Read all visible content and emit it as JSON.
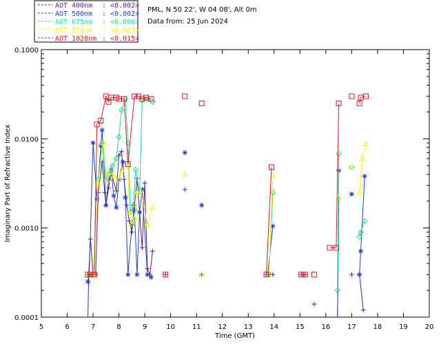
{
  "chart_data": {
    "type": "scatter",
    "title": "",
    "xlabel": "Time (GMT)",
    "ylabel": "Imaginary Part of Refractive Index",
    "xlim": [
      5,
      20
    ],
    "ylim": [
      0.0001,
      0.1
    ],
    "yscale": "log",
    "x_ticks": [
      5,
      6,
      7,
      8,
      9,
      10,
      11,
      12,
      13,
      14,
      15,
      16,
      17,
      18,
      19,
      20
    ],
    "x_tick_labels": [
      "5",
      "6",
      "7",
      "8",
      "9",
      "10",
      "11",
      "12",
      "13",
      "14",
      "15",
      "16",
      "17",
      "18",
      "19",
      "20"
    ],
    "y_ticks": [
      0.0001,
      0.001,
      0.01,
      0.1
    ],
    "y_tick_labels": [
      "0.0001",
      "0.0010",
      "0.0100",
      "0.1000"
    ],
    "info_line1": "PML, N 50 22', W 04 08', Alt 0m",
    "info_line2": "Data from: 25 Jun 2024",
    "legend_position": "top-left outside",
    "series": [
      {
        "name": "AOT 400nm",
        "stat": ": <0.002>",
        "color": "#5b1a8c",
        "marker": "plus",
        "segments": [
          [
            [
              6.8,
              0.0001
            ],
            [
              6.83,
              0.0003
            ],
            [
              6.9,
              0.00075
            ],
            [
              7.0,
              0.0003
            ],
            [
              7.1,
              0.0003
            ],
            [
              7.2,
              0.0025
            ],
            [
              7.35,
              0.0055
            ],
            [
              7.45,
              0.0025
            ],
            [
              7.5,
              0.0018
            ],
            [
              7.6,
              0.0028
            ],
            [
              7.7,
              0.0042
            ],
            [
              7.9,
              0.0026
            ],
            [
              8.0,
              0.0065
            ],
            [
              8.1,
              0.0072
            ],
            [
              8.2,
              0.0035
            ],
            [
              8.3,
              0.0018
            ],
            [
              8.4,
              0.0012
            ],
            [
              8.5,
              0.0009
            ],
            [
              8.6,
              0.0018
            ],
            [
              8.7,
              0.0036
            ],
            [
              8.8,
              0.0015
            ],
            [
              8.9,
              0.0006
            ],
            [
              9.0,
              0.0032
            ],
            [
              9.1,
              0.00035
            ],
            [
              9.2,
              0.0003
            ],
            [
              9.3,
              0.00055
            ]
          ],
          [
            [
              9.8,
              0.0003
            ]
          ],
          [
            [
              10.55,
              0.0027
            ]
          ],
          [
            [
              11.2,
              0.0003
            ]
          ],
          [
            [
              13.7,
              0.0003
            ],
            [
              13.85,
              0.0003
            ],
            [
              13.95,
              0.0003
            ]
          ],
          [
            [
              15.05,
              0.0003
            ],
            [
              15.2,
              0.0003
            ]
          ],
          [
            [
              15.55,
              0.00014
            ]
          ],
          [
            [
              16.45,
              0.0001
            ],
            [
              16.5,
              0.0021
            ]
          ],
          [
            [
              17.0,
              0.0003
            ]
          ],
          [
            [
              17.3,
              0.0003
            ],
            [
              17.45,
              0.00012
            ]
          ]
        ]
      },
      {
        "name": "AOT 500nm",
        "stat": ": <0.002>",
        "color": "#1f3cc7",
        "marker": "star",
        "segments": [
          [
            [
              6.8,
              0.00025
            ],
            [
              6.85,
              0.0003
            ],
            [
              7.0,
              0.009
            ],
            [
              7.15,
              0.0021
            ],
            [
              7.3,
              0.0083
            ],
            [
              7.35,
              0.0125
            ],
            [
              7.5,
              0.0018
            ],
            [
              7.6,
              0.0035
            ],
            [
              7.7,
              0.0045
            ],
            [
              7.8,
              0.0023
            ],
            [
              7.9,
              0.0017
            ],
            [
              8.0,
              0.0035
            ],
            [
              8.15,
              0.0055
            ],
            [
              8.25,
              0.0022
            ],
            [
              8.35,
              0.0003
            ],
            [
              8.5,
              0.0011
            ],
            [
              8.6,
              0.0016
            ],
            [
              8.7,
              0.0003
            ],
            [
              8.8,
              0.0015
            ],
            [
              8.9,
              0.0027
            ],
            [
              9.1,
              0.0003
            ],
            [
              9.25,
              0.00028
            ]
          ],
          [
            [
              10.55,
              0.007
            ]
          ],
          [
            [
              11.2,
              0.0018
            ]
          ],
          [
            [
              13.75,
              0.0003
            ],
            [
              13.95,
              0.00105
            ]
          ],
          [
            [
              16.45,
              0.0001
            ],
            [
              16.5,
              0.0044
            ]
          ],
          [
            [
              17.0,
              0.0024
            ]
          ],
          [
            [
              17.3,
              0.0003
            ],
            [
              17.35,
              0.00055
            ],
            [
              17.5,
              0.0038
            ]
          ]
        ]
      },
      {
        "name": "AOT 675nm",
        "stat": ": <0.006>",
        "color": "#19d89a",
        "marker": "diamond",
        "segments": [
          [
            [
              6.85,
              0.0003
            ],
            [
              7.0,
              0.0003
            ],
            [
              7.2,
              0.0035
            ],
            [
              7.35,
              0.009
            ],
            [
              7.5,
              0.0035
            ],
            [
              7.6,
              0.004
            ],
            [
              7.75,
              0.005
            ],
            [
              7.9,
              0.006
            ],
            [
              8.0,
              0.0105
            ],
            [
              8.1,
              0.021
            ],
            [
              8.25,
              0.028
            ],
            [
              8.35,
              0.009
            ],
            [
              8.45,
              0.0015
            ],
            [
              8.55,
              0.0018
            ],
            [
              8.65,
              0.0045
            ],
            [
              8.8,
              0.0025
            ],
            [
              8.9,
              0.027
            ],
            [
              9.1,
              0.028
            ],
            [
              9.3,
              0.026
            ]
          ],
          [
            [
              13.8,
              0.0003
            ],
            [
              13.95,
              0.0025
            ]
          ],
          [
            [
              16.45,
              0.0002
            ],
            [
              16.5,
              0.0068
            ]
          ],
          [
            [
              17.0,
              0.0048
            ]
          ],
          [
            [
              17.3,
              0.0008
            ],
            [
              17.35,
              0.0009
            ],
            [
              17.5,
              0.0012
            ]
          ]
        ]
      },
      {
        "name": "AOT 870nm",
        "stat": ": <0.003>",
        "color": "#f2f213",
        "marker": "triangle",
        "segments": [
          [
            [
              6.85,
              0.0003
            ],
            [
              7.0,
              0.0003
            ],
            [
              7.2,
              0.0032
            ],
            [
              7.4,
              0.009
            ],
            [
              7.55,
              0.0035
            ],
            [
              7.7,
              0.0042
            ],
            [
              7.8,
              0.0038
            ],
            [
              8.0,
              0.0035
            ],
            [
              8.1,
              0.0045
            ],
            [
              8.35,
              0.005
            ],
            [
              8.4,
              0.0015
            ],
            [
              8.5,
              0.0011
            ],
            [
              8.6,
              0.0013
            ],
            [
              8.7,
              0.0025
            ],
            [
              8.85,
              0.0026
            ],
            [
              9.1,
              0.0011
            ],
            [
              9.3,
              0.0017
            ]
          ],
          [
            [
              10.55,
              0.004
            ]
          ],
          [
            [
              11.2,
              0.0003
            ]
          ],
          [
            [
              13.8,
              0.0003
            ],
            [
              13.95,
              0.0039
            ]
          ],
          [
            [
              16.5,
              0.0022
            ]
          ],
          [
            [
              17.0,
              0.0048
            ]
          ],
          [
            [
              17.3,
              0.0025
            ],
            [
              17.4,
              0.006
            ],
            [
              17.55,
              0.0088
            ]
          ]
        ]
      },
      {
        "name": "AOT 1020nm",
        "stat": ": <0.015>",
        "color": "#e0141e",
        "marker": "square",
        "segments": [
          [
            [
              6.8,
              0.0003
            ],
            [
              6.9,
              0.0003
            ],
            [
              7.05,
              0.0003
            ],
            [
              7.15,
              0.0145
            ],
            [
              7.3,
              0.016
            ],
            [
              7.5,
              0.03
            ],
            [
              7.6,
              0.026
            ],
            [
              7.7,
              0.029
            ],
            [
              7.9,
              0.029
            ],
            [
              8.0,
              0.028
            ],
            [
              8.2,
              0.028
            ],
            [
              8.35,
              0.0052
            ],
            [
              8.6,
              0.03
            ],
            [
              8.75,
              0.03
            ],
            [
              8.9,
              0.028
            ],
            [
              9.05,
              0.029
            ],
            [
              9.25,
              0.028
            ]
          ],
          [
            [
              9.8,
              0.0003
            ]
          ],
          [
            [
              10.55,
              0.03
            ]
          ],
          [
            [
              11.2,
              0.025
            ]
          ],
          [
            [
              13.7,
              0.0003
            ],
            [
              13.9,
              0.0048
            ]
          ],
          [
            [
              15.05,
              0.0003
            ],
            [
              15.2,
              0.0003
            ]
          ],
          [
            [
              15.55,
              0.0003
            ]
          ],
          [
            [
              16.15,
              0.0006
            ],
            [
              16.4,
              0.0006
            ],
            [
              16.5,
              0.025
            ]
          ],
          [
            [
              17.0,
              0.03
            ]
          ],
          [
            [
              17.3,
              0.025
            ],
            [
              17.35,
              0.029
            ],
            [
              17.55,
              0.03
            ]
          ]
        ]
      }
    ]
  }
}
